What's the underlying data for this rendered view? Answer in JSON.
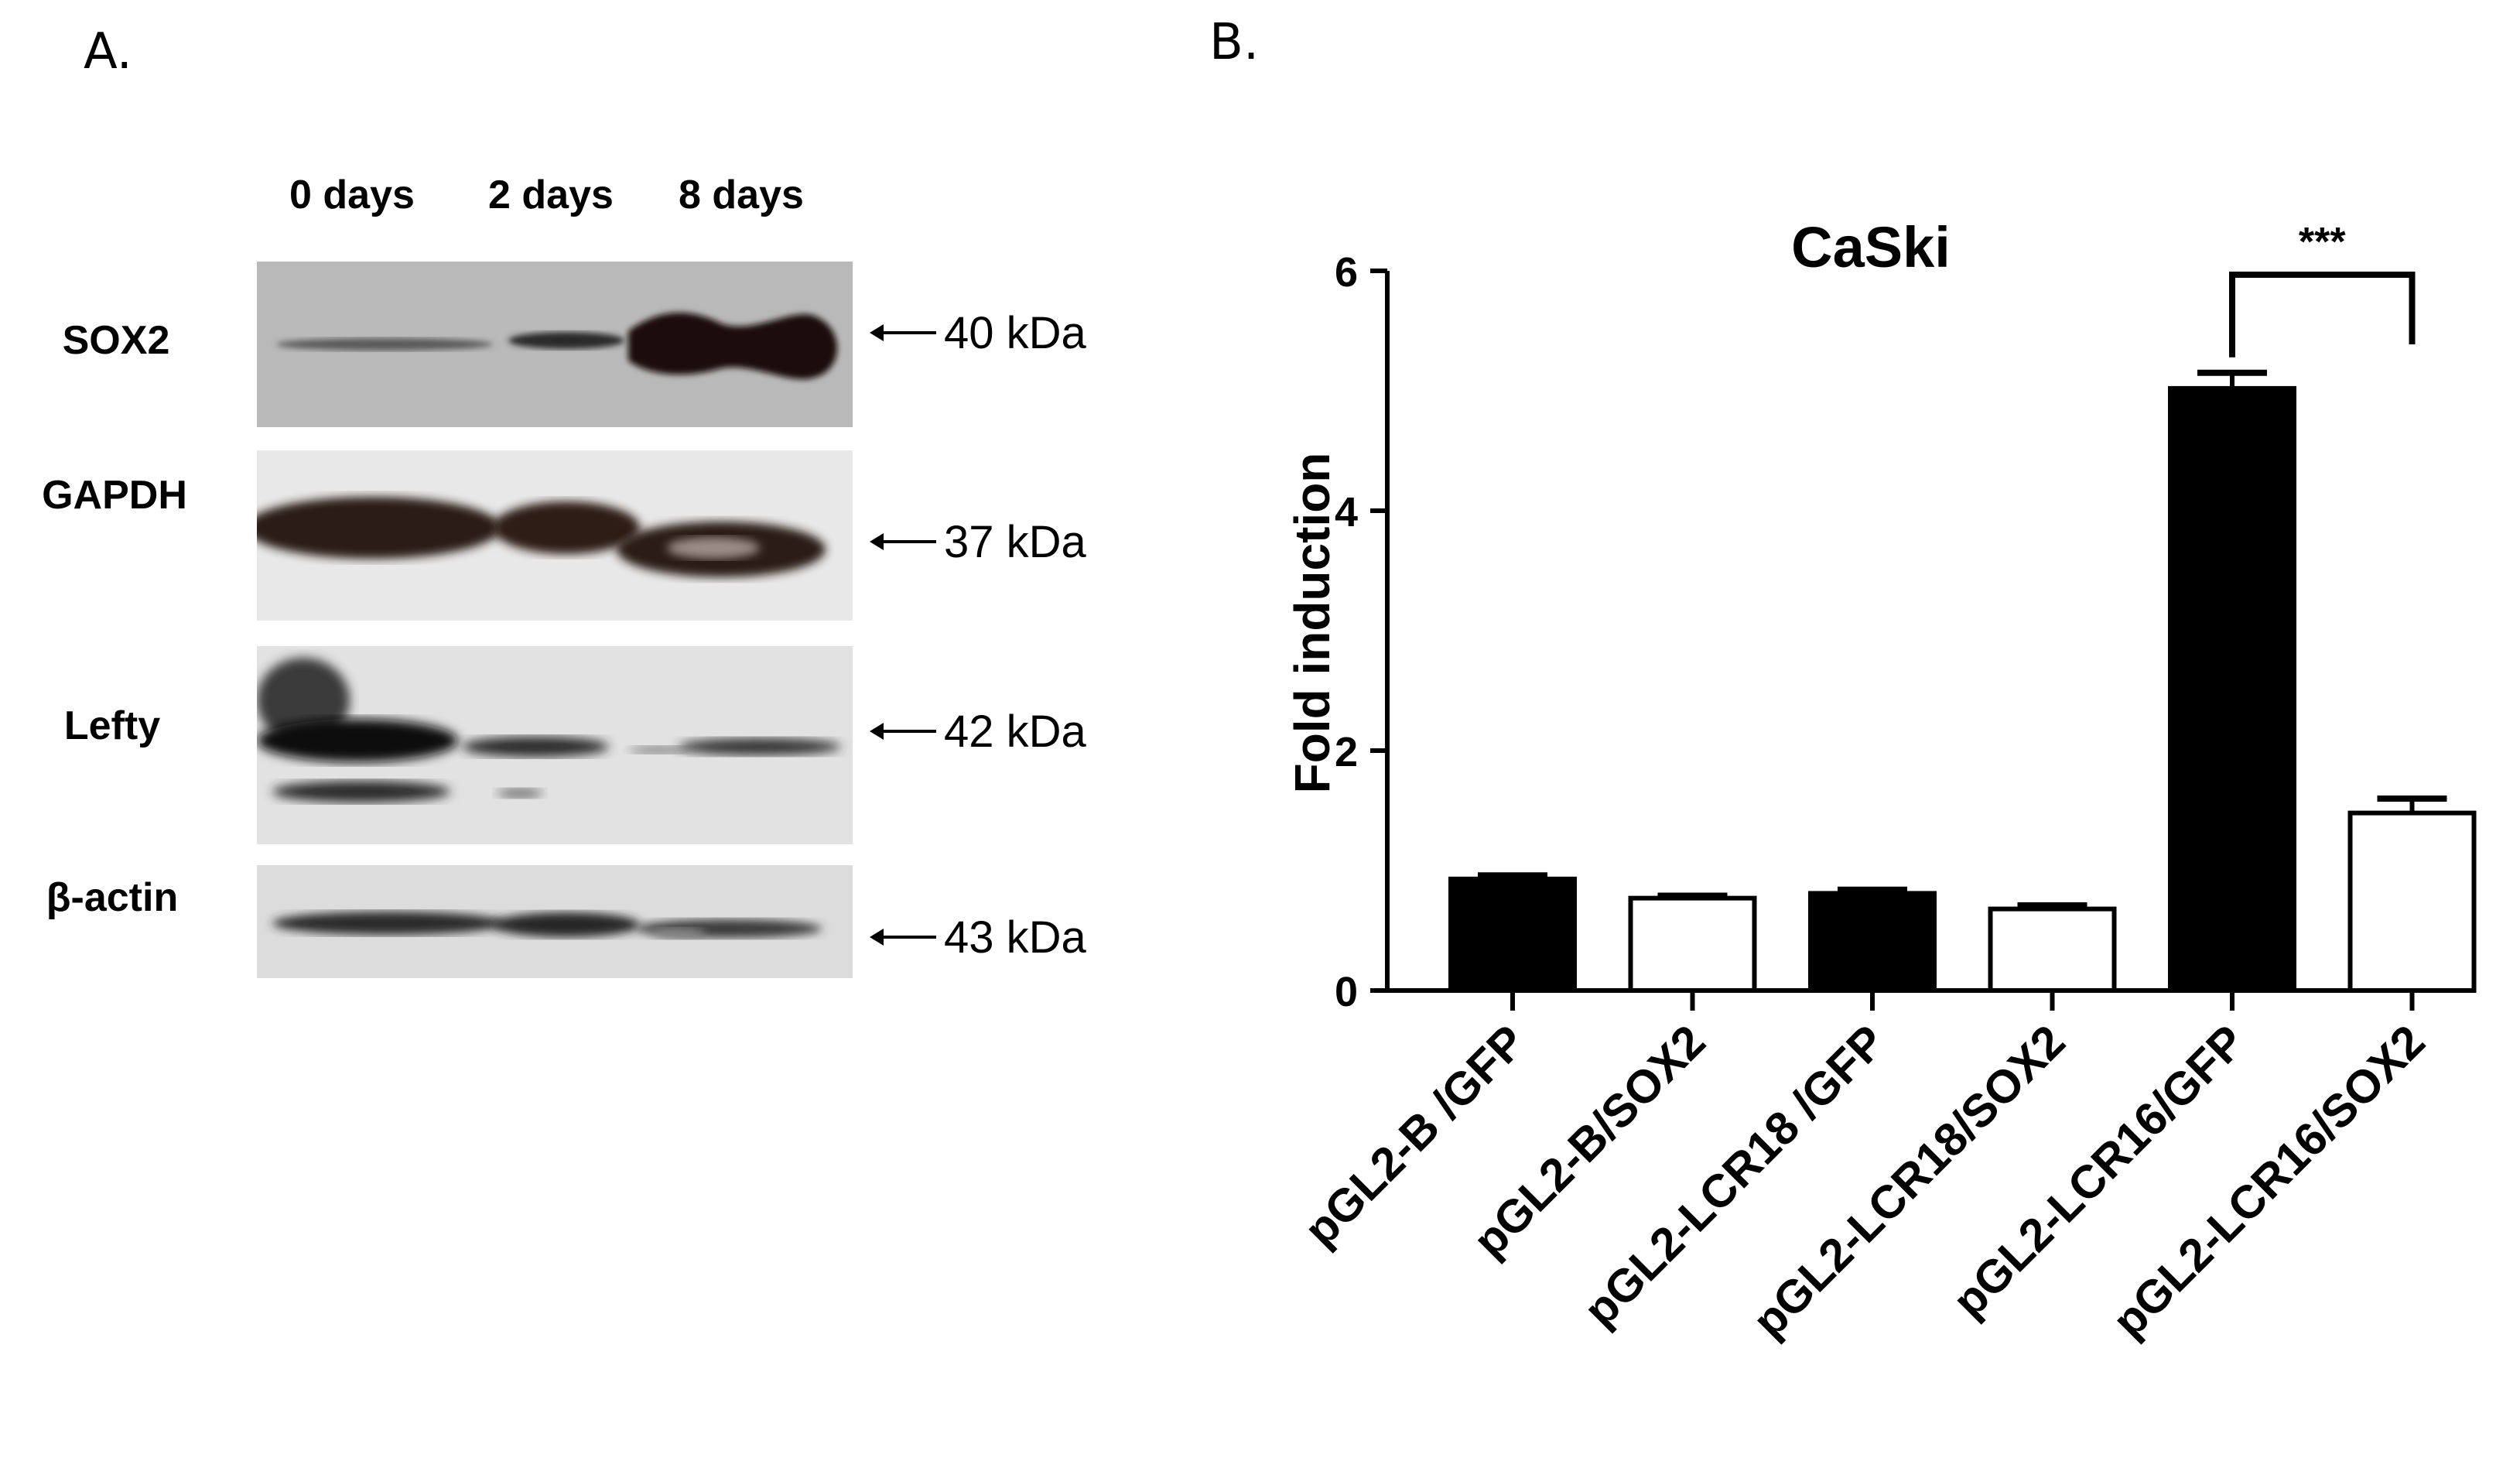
{
  "panels": {
    "a_label": "A.",
    "b_label": "B."
  },
  "western_blot": {
    "lanes": [
      "0 days",
      "2 days",
      "8 days"
    ],
    "rows": [
      {
        "protein": "SOX2",
        "marker": "40 kDa"
      },
      {
        "protein": "GAPDH",
        "marker": "37 kDa"
      },
      {
        "protein": "Lefty",
        "marker": "42 kDa"
      },
      {
        "protein": "β-actin",
        "marker": "43 kDa"
      }
    ]
  },
  "chart_data": {
    "type": "bar",
    "title": "CaSki",
    "ylabel": "Fold induction",
    "xlabel": "",
    "ylim": [
      0,
      6
    ],
    "yticks": [
      0,
      2,
      4,
      6
    ],
    "categories": [
      "pGL2-B /GFP",
      "pGL2-B/SOX2",
      "pGL2-LCR18 /GFP",
      "pGL2-LCR18/SOX2",
      "pGL2-LCR16/GFP",
      "pGL2-LCR16/SOX2"
    ],
    "values": [
      0.93,
      0.77,
      0.81,
      0.68,
      5.02,
      1.48
    ],
    "errors": [
      0.03,
      0.02,
      0.03,
      0.03,
      0.13,
      0.12
    ],
    "fills": [
      "#000000",
      "#ffffff",
      "#000000",
      "#ffffff",
      "#000000",
      "#ffffff"
    ],
    "significance": {
      "from": 4,
      "to": 5,
      "label": "***"
    },
    "grid": false,
    "legend": "none"
  }
}
